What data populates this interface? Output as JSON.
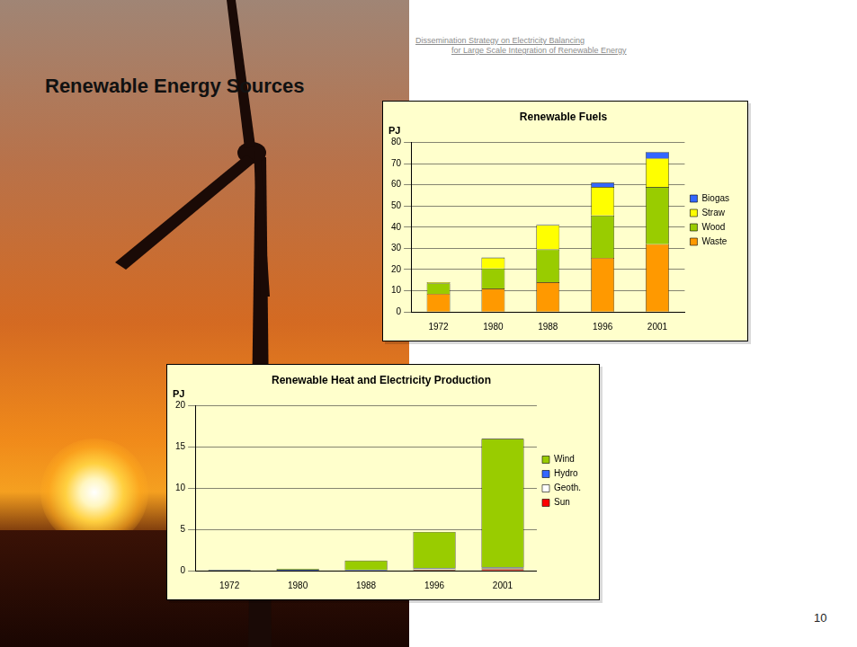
{
  "slide": {
    "header": [
      "Dissemination Strategy on Electricity Balancing",
      "for Large Scale Integration of Renewable Energy"
    ],
    "title": "Renewable Energy Sources",
    "page": 10
  },
  "chart_data": [
    {
      "type": "bar",
      "title": "Renewable Fuels",
      "ylabel": "PJ",
      "categories": [
        "1972",
        "1980",
        "1988",
        "1996",
        "2001"
      ],
      "series": [
        {
          "name": "Waste",
          "color": "#ff9900",
          "values": [
            8.5,
            11,
            14,
            25.5,
            32
          ]
        },
        {
          "name": "Wood",
          "color": "#99cc00",
          "values": [
            5,
            9.5,
            15.5,
            20,
            27
          ]
        },
        {
          "name": "Straw",
          "color": "#ffff00",
          "values": [
            0.5,
            5,
            11.5,
            13.5,
            13.5
          ]
        },
        {
          "name": "Biogas",
          "color": "#3366ff",
          "values": [
            0,
            0.2,
            0.3,
            2,
            3
          ]
        }
      ],
      "stacked": true,
      "ylim": [
        0,
        80
      ],
      "yticks": [
        0,
        10,
        20,
        30,
        40,
        50,
        60,
        70,
        80
      ],
      "grid": true,
      "legend": "right"
    },
    {
      "type": "bar",
      "title": "Renewable Heat and Electricity Production",
      "ylabel": "PJ",
      "categories": [
        "1972",
        "1980",
        "1988",
        "1996",
        "2001"
      ],
      "series": [
        {
          "name": "Sun",
          "color": "#ff0000",
          "values": [
            0,
            0.01,
            0.02,
            0.1,
            0.2
          ]
        },
        {
          "name": "Geoth.",
          "color": "#ffffff",
          "values": [
            0,
            0,
            0,
            0.1,
            0.1
          ]
        },
        {
          "name": "Hydro",
          "color": "#3366ff",
          "values": [
            0.1,
            0.1,
            0.1,
            0.1,
            0.1
          ]
        },
        {
          "name": "Wind",
          "color": "#99cc00",
          "values": [
            0,
            0.1,
            1.1,
            4.4,
            15.6
          ]
        }
      ],
      "stacked": true,
      "ylim": [
        0,
        20
      ],
      "yticks": [
        0,
        5,
        10,
        15,
        20
      ],
      "grid": true,
      "legend": "right"
    }
  ]
}
